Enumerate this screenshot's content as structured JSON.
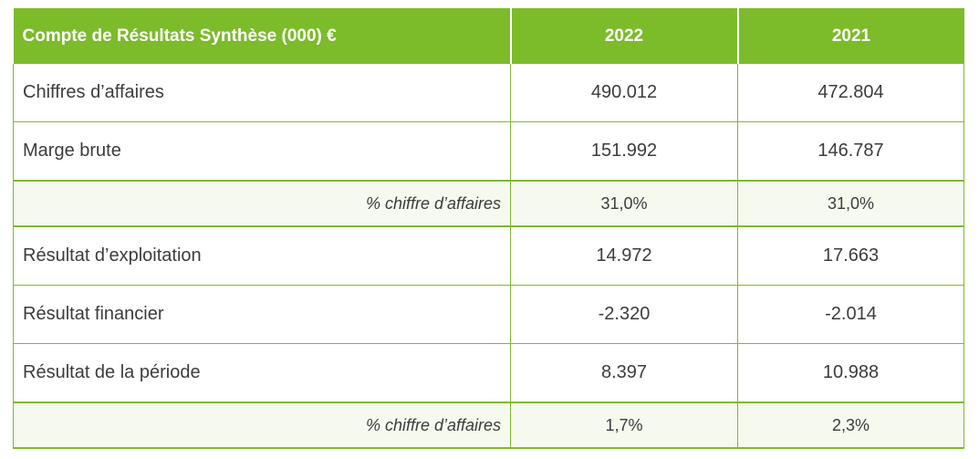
{
  "table": {
    "header": {
      "title": "Compte de Résultats Synthèse (000) €",
      "years": [
        "2022",
        "2021"
      ]
    },
    "rows": [
      {
        "label": "Chiffres d’affaires",
        "values": [
          "490.012",
          "472.804"
        ]
      },
      {
        "label": "Marge brute",
        "values": [
          "151.992",
          "146.787"
        ]
      },
      {
        "label": "% chiffre d’affaires",
        "values": [
          "31,0%",
          "31,0%"
        ]
      },
      {
        "label": "Résultat d’exploitation",
        "values": [
          "14.972",
          "17.663"
        ]
      },
      {
        "label": "Résultat financier",
        "values": [
          "-2.320",
          "-2.014"
        ]
      },
      {
        "label": "Résultat de la période",
        "values": [
          "8.397",
          "10.988"
        ]
      },
      {
        "label": "% chiffre d’affaires",
        "values": [
          "1,7%",
          "2,3%"
        ]
      }
    ]
  },
  "colors": {
    "header_green": "#7cbb2a",
    "sub_row_bg": "#f5f9ee",
    "text": "#3c3c3c"
  }
}
